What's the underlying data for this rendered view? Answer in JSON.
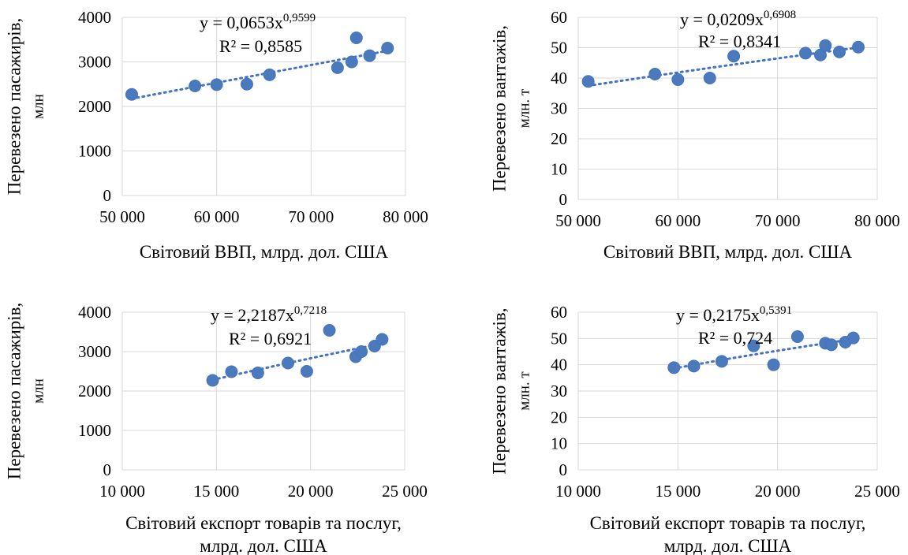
{
  "chart_data": [
    {
      "type": "scatter",
      "xlabel": "Світовий ВВП, млрд. дол. США",
      "ylabel": [
        "Перевезено пасажирів,",
        "млн"
      ],
      "xlim": [
        50000,
        80000
      ],
      "ylim": [
        0,
        4000
      ],
      "xticks": [
        50000,
        60000,
        70000,
        80000
      ],
      "xtick_labels": [
        "50 000",
        "60 000",
        "70 000",
        "80 000"
      ],
      "yticks": [
        0,
        1000,
        2000,
        3000,
        4000
      ],
      "ytick_labels": [
        "0",
        "1000",
        "2000",
        "3000",
        "4000"
      ],
      "grid": true,
      "series": [
        {
          "x": [
            51000,
            57700,
            60000,
            63200,
            65600,
            72800,
            74300,
            74800,
            76200,
            78100
          ],
          "y": [
            2270,
            2460,
            2490,
            2500,
            2710,
            2870,
            3000,
            3540,
            3140,
            3310
          ]
        }
      ],
      "trendline": {
        "type": "power",
        "coef": 0.0653,
        "exp": 0.9599,
        "x_range": [
          51000,
          78100
        ],
        "equation_prefix": "y = 0,0653x",
        "equation_exponent": "0,9599",
        "r2_label": "R² = 0,8585"
      }
    },
    {
      "type": "scatter",
      "xlabel": "Світовий ВВП, млрд. дол. США",
      "ylabel": [
        "Перевезено вантажів,",
        "млн. т"
      ],
      "xlim": [
        50000,
        80000
      ],
      "ylim": [
        0,
        60
      ],
      "xticks": [
        50000,
        60000,
        70000,
        80000
      ],
      "xtick_labels": [
        "50 000",
        "60 000",
        "70 000",
        "80 000"
      ],
      "yticks": [
        0,
        10,
        20,
        30,
        40,
        50,
        60
      ],
      "ytick_labels": [
        "0",
        "10",
        "20",
        "30",
        "40",
        "50",
        "60"
      ],
      "grid": true,
      "series": [
        {
          "x": [
            51000,
            57700,
            60000,
            63200,
            65600,
            72800,
            74300,
            74800,
            76200,
            78100
          ],
          "y": [
            38.9,
            41.3,
            39.5,
            40.0,
            47.2,
            48.2,
            47.6,
            50.7,
            48.6,
            50.2
          ]
        }
      ],
      "trendline": {
        "type": "power",
        "coef": 0.0209,
        "exp": 0.6908,
        "x_range": [
          51000,
          78100
        ],
        "equation_prefix": "y = 0,0209x",
        "equation_exponent": "0,6908",
        "r2_label": "R² = 0,8341"
      }
    },
    {
      "type": "scatter",
      "xlabel": [
        "Світовий експорт товарів та послуг,",
        "млрд. дол. США"
      ],
      "ylabel": [
        "Перевезено пасажирів,",
        "млн"
      ],
      "xlim": [
        10000,
        25000
      ],
      "ylim": [
        0,
        4000
      ],
      "xticks": [
        10000,
        15000,
        20000,
        25000
      ],
      "xtick_labels": [
        "10 000",
        "15 000",
        "20 000",
        "25 000"
      ],
      "yticks": [
        0,
        1000,
        2000,
        3000,
        4000
      ],
      "ytick_labels": [
        "0",
        "1000",
        "2000",
        "3000",
        "4000"
      ],
      "grid": true,
      "series": [
        {
          "x": [
            14800,
            15800,
            17200,
            18800,
            19800,
            21000,
            22400,
            22700,
            23400,
            23800
          ],
          "y": [
            2270,
            2490,
            2460,
            2710,
            2500,
            3540,
            2870,
            3000,
            3140,
            3310
          ]
        }
      ],
      "trendline": {
        "type": "power",
        "coef": 2.2187,
        "exp": 0.7218,
        "x_range": [
          14800,
          23800
        ],
        "equation_prefix": "y = 2,2187x",
        "equation_exponent": "0,7218",
        "r2_label": "R² = 0,6921"
      }
    },
    {
      "type": "scatter",
      "xlabel": [
        "Світовий експорт товарів та послуг,",
        "млрд. дол. США"
      ],
      "ylabel": [
        "Перевезено вантажів,",
        "млн. т"
      ],
      "xlim": [
        10000,
        25000
      ],
      "ylim": [
        0,
        60
      ],
      "xticks": [
        10000,
        15000,
        20000,
        25000
      ],
      "xtick_labels": [
        "10 000",
        "15 000",
        "20 000",
        "25 000"
      ],
      "yticks": [
        0,
        10,
        20,
        30,
        40,
        50,
        60
      ],
      "ytick_labels": [
        "0",
        "10",
        "20",
        "30",
        "40",
        "50",
        "60"
      ],
      "grid": true,
      "series": [
        {
          "x": [
            14800,
            15800,
            17200,
            18800,
            19800,
            21000,
            22400,
            22700,
            23400,
            23800
          ],
          "y": [
            38.9,
            39.5,
            41.3,
            47.2,
            40.0,
            50.7,
            48.2,
            47.6,
            48.6,
            50.2
          ]
        }
      ],
      "trendline": {
        "type": "power",
        "coef": 0.2175,
        "exp": 0.5391,
        "x_range": [
          14800,
          23800
        ],
        "equation_prefix": "y = 0,2175x",
        "equation_exponent": "0,5391",
        "r2_label": "R² = 0,724"
      }
    }
  ]
}
